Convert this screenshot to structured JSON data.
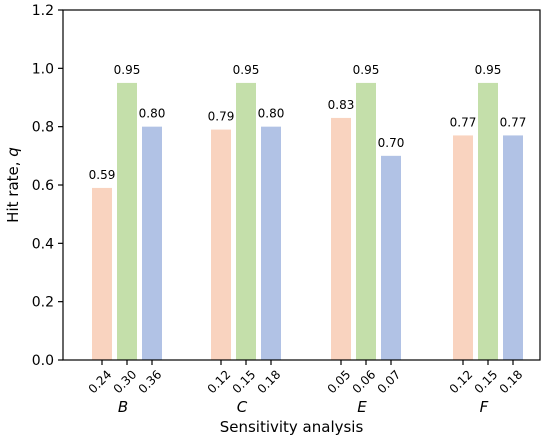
{
  "chart_data": {
    "type": "bar",
    "xlabel": "Sensitivity analysis",
    "ylabel_main": "Hit rate, ",
    "ylabel_var": "q",
    "ylim": [
      0,
      1.2
    ],
    "yticks": [
      "0.0",
      "0.2",
      "0.4",
      "0.6",
      "0.8",
      "1.0",
      "1.2"
    ],
    "grid": false,
    "colors": [
      "#f9d3bf",
      "#c4dfaa",
      "#b1c2e5"
    ],
    "groups": [
      {
        "name": "B",
        "bars": [
          {
            "param": "0.24",
            "value": 0.59,
            "label": "0.59"
          },
          {
            "param": "0.30",
            "value": 0.95,
            "label": "0.95"
          },
          {
            "param": "0.36",
            "value": 0.8,
            "label": "0.80"
          }
        ]
      },
      {
        "name": "C",
        "bars": [
          {
            "param": "0.12",
            "value": 0.79,
            "label": "0.79"
          },
          {
            "param": "0.15",
            "value": 0.95,
            "label": "0.95"
          },
          {
            "param": "0.18",
            "value": 0.8,
            "label": "0.80"
          }
        ]
      },
      {
        "name": "E",
        "bars": [
          {
            "param": "0.05",
            "value": 0.83,
            "label": "0.83"
          },
          {
            "param": "0.06",
            "value": 0.95,
            "label": "0.95"
          },
          {
            "param": "0.07",
            "value": 0.7,
            "label": "0.70"
          }
        ]
      },
      {
        "name": "F",
        "bars": [
          {
            "param": "0.12",
            "value": 0.77,
            "label": "0.77"
          },
          {
            "param": "0.15",
            "value": 0.95,
            "label": "0.95"
          },
          {
            "param": "0.18",
            "value": 0.77,
            "label": "0.77"
          }
        ]
      }
    ]
  }
}
